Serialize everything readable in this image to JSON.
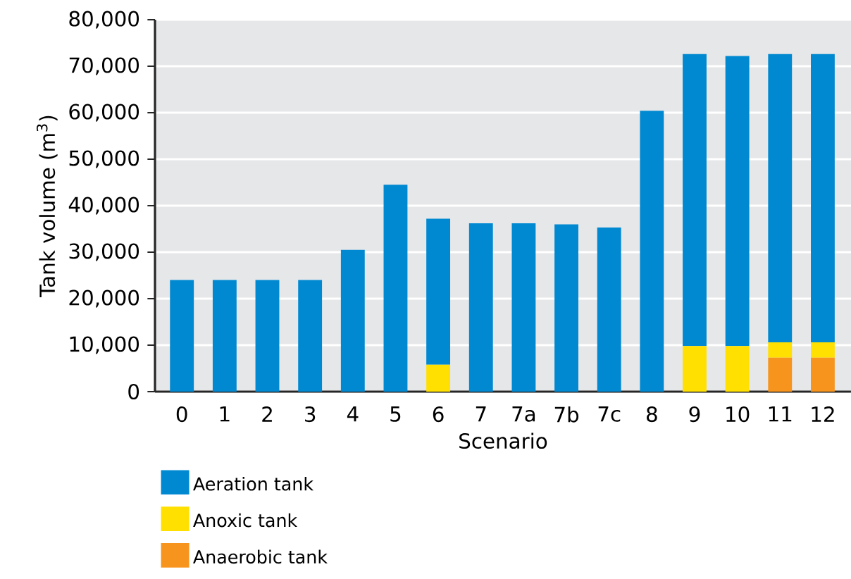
{
  "chart_data": {
    "type": "bar",
    "stacked": true,
    "xlabel": "Scenario",
    "ylabel": "Tank volume (m$^{3}$)",
    "categories": [
      "0",
      "1",
      "2",
      "3",
      "4",
      "5",
      "6",
      "7",
      "7a",
      "7b",
      "7c",
      "8",
      "9",
      "10",
      "11",
      "12"
    ],
    "series": [
      {
        "name": "Anaerobic tank",
        "color": "#f7941d",
        "values": [
          0,
          0,
          0,
          0,
          0,
          0,
          0,
          0,
          0,
          0,
          0,
          0,
          0,
          0,
          7300,
          7300
        ]
      },
      {
        "name": "Anoxic tank",
        "color": "#ffe000",
        "values": [
          0,
          0,
          0,
          0,
          0,
          0,
          5800,
          0,
          0,
          0,
          0,
          0,
          9800,
          9800,
          3300,
          3300
        ]
      },
      {
        "name": "Aeration tank",
        "color": "#0089d1",
        "values": [
          24000,
          24000,
          24000,
          24000,
          30500,
          44500,
          31400,
          36200,
          36200,
          36000,
          35300,
          60400,
          62800,
          62400,
          62000,
          62000
        ]
      }
    ],
    "ylim": [
      0,
      80000
    ],
    "yticks": [
      0,
      {
        "value": 10000,
        "label": "10,000"
      },
      {
        "value": 20000,
        "label": "20,000"
      },
      {
        "value": 30000,
        "label": "30,000"
      },
      {
        "value": 40000,
        "label": "40,000"
      },
      {
        "value": 50000,
        "label": "50,000"
      },
      {
        "value": 60000,
        "label": "60,000"
      },
      {
        "value": 70000,
        "label": "70,000"
      },
      {
        "value": 80000,
        "label": "80,000"
      }
    ],
    "grid": "y",
    "legend": "bottom left"
  }
}
